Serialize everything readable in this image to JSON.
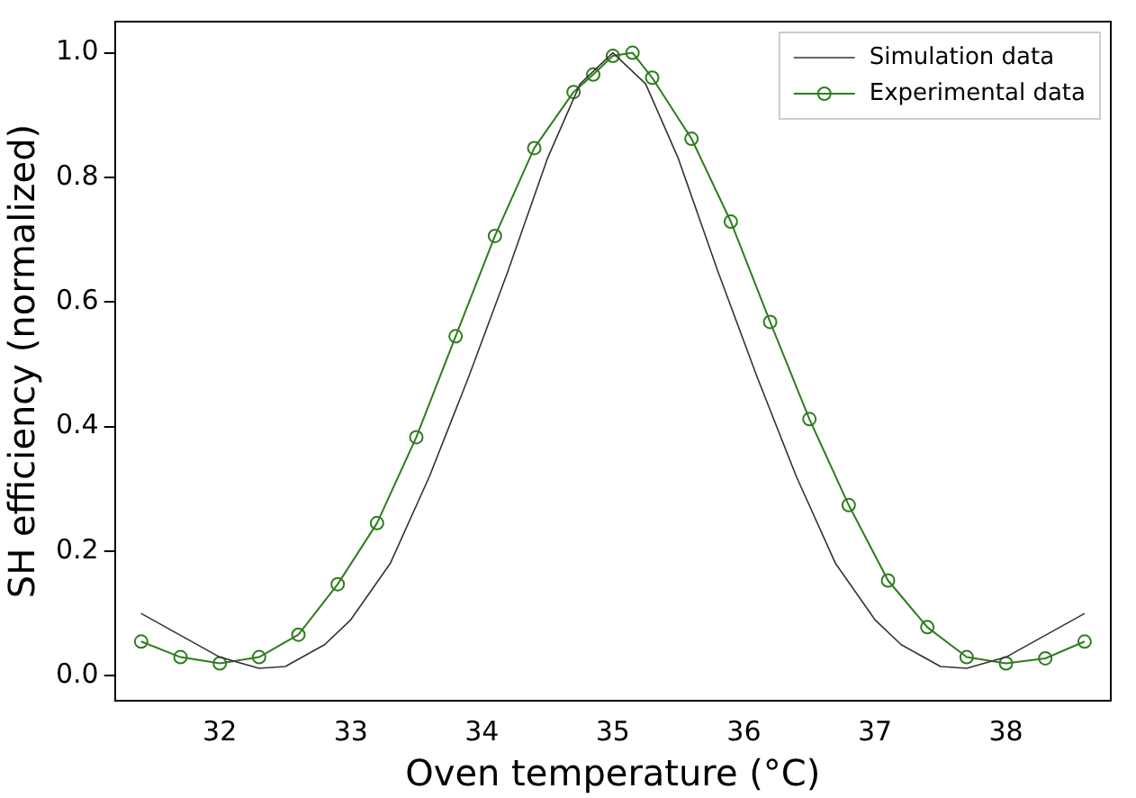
{
  "chart_data": {
    "type": "line",
    "xlabel": "Oven temperature (°C)",
    "ylabel": "SH efficiency (normalized)",
    "xlim": [
      31.2,
      38.8
    ],
    "xticks": [
      32,
      33,
      34,
      35,
      36,
      37,
      38
    ],
    "ylim": [
      -0.04,
      1.05
    ],
    "yticks": [
      {
        "value": 0,
        "label": "0.0"
      },
      0.2,
      0.4,
      0.6,
      0.8,
      {
        "value": 1,
        "label": "1.0"
      }
    ],
    "grid": false,
    "legend": "top right",
    "series": [
      {
        "name": "Simulation data",
        "color": "#333333",
        "marker": "none",
        "x": [
          31.4,
          31.7,
          32.0,
          32.3,
          32.5,
          32.8,
          33.0,
          33.3,
          33.6,
          33.9,
          34.2,
          34.5,
          34.75,
          35.0,
          35.25,
          35.5,
          35.8,
          36.1,
          36.4,
          36.7,
          37.0,
          37.2,
          37.5,
          37.7,
          38.0,
          38.3,
          38.6
        ],
        "values": [
          0.1,
          0.065,
          0.03,
          0.012,
          0.015,
          0.05,
          0.09,
          0.18,
          0.32,
          0.48,
          0.65,
          0.83,
          0.95,
          1.0,
          0.95,
          0.83,
          0.65,
          0.48,
          0.32,
          0.18,
          0.09,
          0.05,
          0.015,
          0.012,
          0.03,
          0.065,
          0.1
        ]
      },
      {
        "name": "Experimental data",
        "color": "#2e7d1e",
        "marker": "circle",
        "x": [
          31.4,
          31.7,
          32.0,
          32.3,
          32.6,
          32.9,
          33.2,
          33.5,
          33.8,
          34.1,
          34.4,
          34.7,
          34.85,
          35.0,
          35.15,
          35.3,
          35.6,
          35.9,
          36.2,
          36.5,
          36.8,
          37.1,
          37.4,
          37.7,
          38.0,
          38.3,
          38.6
        ],
        "values": [
          0.055,
          0.03,
          0.02,
          0.03,
          0.066,
          0.147,
          0.245,
          0.383,
          0.545,
          0.706,
          0.847,
          0.937,
          0.965,
          0.995,
          1.0,
          0.96,
          0.862,
          0.729,
          0.568,
          0.412,
          0.274,
          0.153,
          0.078,
          0.03,
          0.02,
          0.028,
          0.055
        ]
      }
    ]
  }
}
